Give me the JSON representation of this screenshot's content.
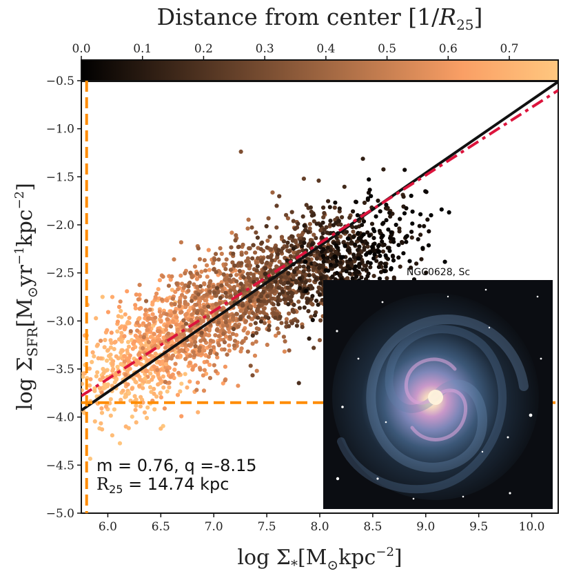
{
  "chart_data": {
    "type": "scatter",
    "xlabel": "log Σ*[M⊙kpc⁻²]",
    "ylabel": "log ΣSFR[M⊙yr⁻¹kpc⁻²]",
    "xlim": [
      5.75,
      10.25
    ],
    "ylim": [
      -5.0,
      -0.5
    ],
    "x_ticks": [
      "6.0",
      "6.5",
      "7.0",
      "7.5",
      "8.0",
      "8.5",
      "9.0",
      "9.5",
      "10.0"
    ],
    "y_ticks": [
      "−0.5",
      "−1.0",
      "−1.5",
      "−2.0",
      "−2.5",
      "−3.0",
      "−3.5",
      "−4.0",
      "−4.5",
      "−5.0"
    ],
    "grid": false,
    "colorbar": {
      "label": "Distance from center [1/R25]",
      "range": [
        0.0,
        0.78
      ],
      "ticks": [
        "0.0",
        "0.1",
        "0.2",
        "0.3",
        "0.4",
        "0.5",
        "0.6",
        "0.7"
      ],
      "colormap": "copper",
      "colors": [
        "#000000",
        "#ffc77f"
      ]
    },
    "series": [
      {
        "kind": "points",
        "color_by": "distance_from_center",
        "points": [
          {
            "x": 7.85,
            "y": -1.52,
            "d": 0.25
          },
          {
            "x": 7.99,
            "y": -1.54,
            "d": 0.22
          },
          {
            "x": 8.8,
            "y": -1.88,
            "d": 0.0
          },
          {
            "x": 8.95,
            "y": -1.89,
            "d": 0.0
          },
          {
            "x": 9.05,
            "y": -1.9,
            "d": 0.0
          },
          {
            "x": 9.15,
            "y": -1.84,
            "d": 0.0
          },
          {
            "x": 9.22,
            "y": -1.87,
            "d": 0.0
          },
          {
            "x": 8.6,
            "y": -1.98,
            "d": 0.03
          },
          {
            "x": 8.72,
            "y": -2.0,
            "d": 0.02
          },
          {
            "x": 8.45,
            "y": -2.08,
            "d": 0.06
          },
          {
            "x": 8.3,
            "y": -2.18,
            "d": 0.1
          },
          {
            "x": 8.15,
            "y": -2.28,
            "d": 0.15
          },
          {
            "x": 7.95,
            "y": -2.4,
            "d": 0.2
          },
          {
            "x": 7.75,
            "y": -2.55,
            "d": 0.27
          },
          {
            "x": 7.55,
            "y": -2.7,
            "d": 0.33
          },
          {
            "x": 7.35,
            "y": -2.85,
            "d": 0.4
          },
          {
            "x": 7.15,
            "y": -3.0,
            "d": 0.47
          },
          {
            "x": 6.95,
            "y": -3.15,
            "d": 0.55
          },
          {
            "x": 6.75,
            "y": -3.3,
            "d": 0.62
          },
          {
            "x": 6.55,
            "y": -3.45,
            "d": 0.7
          },
          {
            "x": 6.35,
            "y": -3.6,
            "d": 0.75
          },
          {
            "x": 6.2,
            "y": -3.75,
            "d": 0.78
          },
          {
            "x": 5.95,
            "y": -2.75,
            "d": 0.75
          },
          {
            "x": 6.1,
            "y": -2.95,
            "d": 0.72
          },
          {
            "x": 6.5,
            "y": -4.12,
            "d": 0.74
          },
          {
            "x": 6.85,
            "y": -3.95,
            "d": 0.7
          },
          {
            "x": 5.8,
            "y": -3.22,
            "d": 0.78
          },
          {
            "x": 8.0,
            "y": -3.2,
            "d": 0.35
          }
        ]
      },
      {
        "name": "",
        "kind": "line",
        "style": "solid",
        "color": "#111111",
        "x": [
          5.75,
          10.25
        ],
        "y": [
          -3.93,
          -0.51
        ]
      },
      {
        "name": "",
        "kind": "line",
        "style": "dashdot",
        "color": "#dc143c",
        "x": [
          5.75,
          10.25
        ],
        "y": [
          -3.78,
          -0.6
        ]
      },
      {
        "name": "",
        "kind": "hline",
        "style": "dashed",
        "color": "#ff8c00",
        "y": -3.85
      },
      {
        "name": "",
        "kind": "vline",
        "style": "dashed",
        "color": "#ff8c00",
        "x": 5.8
      }
    ],
    "annotations": {
      "fit": "m = 0.76, q =-8.15",
      "r25_prefix": "R",
      "r25_sub": "25",
      "r25_value": " = 14.74 kpc"
    },
    "inset": {
      "title": "NGC0628, Sc"
    }
  }
}
